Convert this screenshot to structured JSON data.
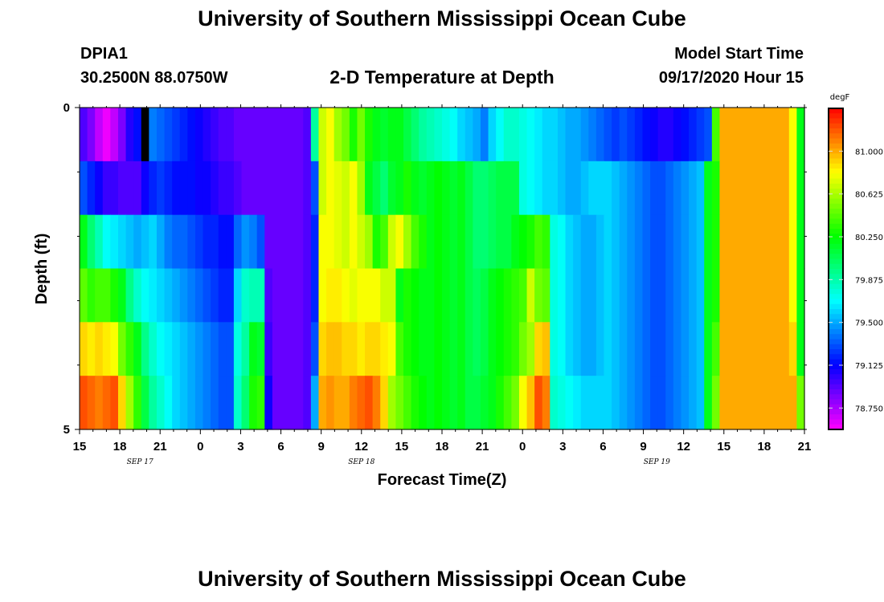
{
  "header": {
    "title": "University of Southern Mississippi Ocean Cube",
    "station_id": "DPIA1",
    "station_coords": "30.2500N 88.0750W",
    "chart_title": "2-D Temperature at Depth",
    "model_start_label": "Model Start Time",
    "model_start_value": "09/17/2020 Hour 15"
  },
  "footer": {
    "title": "University of Southern Mississippi Ocean Cube"
  },
  "chart_data": {
    "type": "heatmap",
    "xlabel": "Forecast Time(Z)",
    "ylabel": "Depth (ft)",
    "ylim": [
      0,
      5
    ],
    "y_tick_labels": [
      "0",
      "5"
    ],
    "x_tick_labels": [
      "15",
      "18",
      "21",
      "0",
      "3",
      "6",
      "9",
      "12",
      "15",
      "18",
      "21",
      "0",
      "3",
      "6",
      "9",
      "12",
      "15",
      "18",
      "21"
    ],
    "date_labels": [
      {
        "text": "SEP 17",
        "hour_offset": 4.5
      },
      {
        "text": "SEP 18",
        "hour_offset": 21
      },
      {
        "text": "SEP 19",
        "hour_offset": 43
      }
    ],
    "x_range_hours": [
      0,
      54
    ],
    "depth_bins": 5,
    "colorbar": {
      "unit": "degF",
      "min": 78.5625,
      "max": 81.375,
      "labels": [
        "81.000",
        "80.625",
        "80.250",
        "79.875",
        "79.500",
        "79.125",
        "78.750"
      ]
    },
    "notes_unit": "degF",
    "rows": [
      [
        78.95,
        78.85,
        78.7,
        78.6,
        78.7,
        78.85,
        79.05,
        79.15,
        79.3,
        79.4,
        79.35,
        79.3,
        79.25,
        79.2,
        79.15,
        79.1,
        79.05,
        79.0,
        78.95,
        78.95,
        78.9,
        78.9,
        78.9,
        78.9,
        78.9,
        78.9,
        78.9,
        78.9,
        78.9,
        78.95,
        79.9,
        80.7,
        80.8,
        80.6,
        80.5,
        80.3,
        80.5,
        80.3,
        80.2,
        80.15,
        80.2,
        80.2,
        80.1,
        80.0,
        79.9,
        79.85,
        79.8,
        79.75,
        79.7,
        79.6,
        79.55,
        79.5,
        79.4,
        79.6,
        79.7,
        79.8,
        79.8,
        79.75,
        79.7,
        79.65,
        79.6,
        79.6,
        79.55,
        79.5,
        79.5,
        79.45,
        79.4,
        79.35,
        79.3,
        79.25,
        79.3,
        79.25,
        79.2,
        79.15,
        79.1,
        79.05,
        79.05,
        79.1,
        79.15,
        79.2,
        79.25,
        79.3,
        80.4,
        81.0,
        81.0,
        81.0,
        81.0,
        81.0,
        81.0,
        81.0,
        81.0,
        81.0,
        80.8,
        80.2
      ],
      [
        79.3,
        79.2,
        79.1,
        79.0,
        79.0,
        78.95,
        78.95,
        78.95,
        79.1,
        79.2,
        79.25,
        79.2,
        79.15,
        79.15,
        79.15,
        79.1,
        79.1,
        79.05,
        79.0,
        79.0,
        78.95,
        78.9,
        78.9,
        78.9,
        78.9,
        78.9,
        78.9,
        78.9,
        78.9,
        78.95,
        79.3,
        80.7,
        80.8,
        80.75,
        80.7,
        80.8,
        80.6,
        80.2,
        80.1,
        80.0,
        80.15,
        80.2,
        80.3,
        80.2,
        80.15,
        80.2,
        80.25,
        80.2,
        80.15,
        80.2,
        80.1,
        80.0,
        80.0,
        80.05,
        80.1,
        80.1,
        80.1,
        79.75,
        79.7,
        79.65,
        79.6,
        79.6,
        79.55,
        79.5,
        79.5,
        79.55,
        79.6,
        79.6,
        79.6,
        79.55,
        79.5,
        79.45,
        79.4,
        79.35,
        79.3,
        79.3,
        79.35,
        79.4,
        79.45,
        79.5,
        79.55,
        80.2,
        80.3,
        81.0,
        81.0,
        81.0,
        81.0,
        81.0,
        81.0,
        81.0,
        81.0,
        81.0,
        80.8,
        80.2
      ],
      [
        80.2,
        80.0,
        79.85,
        79.7,
        79.65,
        79.6,
        79.55,
        79.5,
        79.55,
        79.6,
        79.5,
        79.4,
        79.35,
        79.35,
        79.3,
        79.25,
        79.2,
        79.2,
        79.15,
        79.15,
        79.35,
        79.45,
        79.4,
        79.3,
        78.9,
        78.9,
        78.9,
        78.9,
        78.9,
        78.95,
        79.2,
        80.8,
        80.8,
        80.75,
        80.7,
        80.8,
        80.7,
        80.6,
        80.3,
        80.4,
        80.7,
        80.8,
        80.6,
        80.4,
        80.3,
        80.2,
        80.25,
        80.2,
        80.15,
        80.2,
        80.1,
        80.0,
        80.0,
        80.05,
        80.1,
        80.1,
        80.2,
        80.25,
        80.3,
        80.4,
        80.35,
        79.75,
        79.7,
        79.6,
        79.55,
        79.5,
        79.5,
        79.55,
        79.6,
        79.55,
        79.5,
        79.45,
        79.4,
        79.35,
        79.3,
        79.3,
        79.35,
        79.4,
        79.45,
        79.5,
        79.55,
        80.2,
        80.3,
        81.0,
        81.0,
        81.0,
        81.0,
        81.0,
        81.0,
        81.0,
        81.0,
        81.0,
        80.8,
        80.2
      ],
      [
        80.45,
        80.35,
        80.4,
        80.4,
        80.3,
        80.2,
        79.95,
        79.8,
        79.7,
        79.65,
        79.6,
        79.55,
        79.5,
        79.45,
        79.4,
        79.35,
        79.3,
        79.25,
        79.2,
        79.2,
        79.6,
        79.8,
        79.85,
        79.85,
        78.95,
        78.9,
        78.9,
        78.9,
        78.9,
        78.95,
        79.2,
        80.8,
        80.85,
        80.85,
        80.8,
        80.75,
        80.8,
        80.8,
        80.8,
        80.7,
        80.7,
        80.2,
        80.3,
        80.25,
        80.2,
        80.2,
        80.25,
        80.2,
        80.15,
        80.2,
        80.1,
        80.05,
        80.1,
        80.2,
        80.25,
        80.3,
        80.35,
        80.4,
        80.7,
        80.5,
        80.45,
        79.75,
        79.7,
        79.6,
        79.55,
        79.5,
        79.5,
        79.55,
        79.6,
        79.55,
        79.5,
        79.45,
        79.4,
        79.35,
        79.3,
        79.3,
        79.35,
        79.4,
        79.45,
        79.5,
        79.55,
        80.2,
        80.3,
        81.0,
        81.0,
        81.0,
        81.0,
        81.0,
        81.0,
        81.0,
        81.0,
        81.0,
        80.8,
        80.2
      ],
      [
        80.9,
        80.85,
        80.9,
        80.85,
        80.8,
        80.5,
        80.35,
        80.2,
        79.95,
        79.8,
        79.7,
        79.65,
        79.6,
        79.55,
        79.5,
        79.45,
        79.4,
        79.35,
        79.3,
        79.3,
        79.75,
        79.9,
        80.2,
        80.15,
        79.0,
        78.9,
        78.9,
        78.9,
        78.9,
        78.95,
        79.3,
        80.9,
        80.95,
        80.95,
        80.9,
        80.9,
        80.85,
        80.9,
        80.9,
        80.85,
        80.8,
        80.4,
        80.3,
        80.25,
        80.2,
        80.2,
        80.25,
        80.2,
        80.15,
        80.2,
        80.1,
        80.05,
        80.1,
        80.2,
        80.25,
        80.3,
        80.35,
        80.5,
        80.6,
        80.9,
        80.95,
        79.75,
        79.7,
        79.6,
        79.55,
        79.5,
        79.5,
        79.55,
        79.6,
        79.55,
        79.5,
        79.45,
        79.4,
        79.35,
        79.3,
        79.3,
        79.35,
        79.4,
        79.45,
        79.5,
        79.55,
        80.2,
        80.4,
        81.0,
        81.0,
        81.0,
        81.0,
        81.0,
        81.0,
        81.0,
        81.0,
        81.0,
        80.9,
        80.2
      ],
      [
        81.2,
        81.15,
        81.1,
        81.15,
        81.2,
        80.9,
        80.6,
        80.35,
        80.1,
        79.9,
        79.8,
        79.7,
        79.6,
        79.55,
        79.5,
        79.45,
        79.4,
        79.35,
        79.3,
        79.3,
        79.8,
        80.0,
        80.3,
        80.35,
        79.1,
        78.9,
        78.9,
        78.9,
        78.9,
        78.95,
        79.5,
        81.0,
        81.05,
        81.0,
        81.0,
        81.1,
        81.15,
        81.2,
        81.1,
        80.9,
        80.6,
        80.5,
        80.4,
        80.3,
        80.25,
        80.2,
        80.25,
        80.2,
        80.15,
        80.2,
        80.1,
        80.1,
        80.15,
        80.2,
        80.3,
        80.4,
        80.5,
        80.8,
        80.95,
        81.2,
        81.1,
        79.8,
        79.75,
        79.7,
        79.65,
        79.6,
        79.6,
        79.6,
        79.6,
        79.55,
        79.5,
        79.45,
        79.4,
        79.35,
        79.3,
        79.3,
        79.35,
        79.4,
        79.45,
        79.5,
        79.55,
        80.2,
        80.5,
        81.0,
        81.0,
        81.0,
        81.0,
        81.0,
        81.0,
        81.0,
        81.0,
        81.0,
        81.0,
        80.5
      ]
    ],
    "black_cell": {
      "row": 0,
      "column": 8
    }
  }
}
